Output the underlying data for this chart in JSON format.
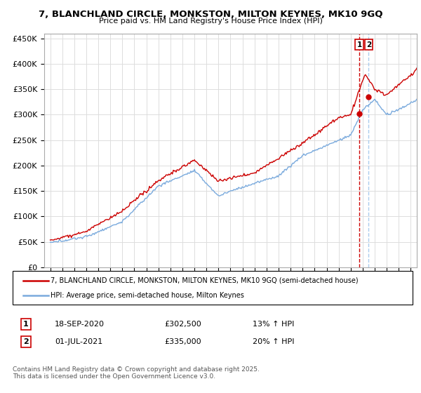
{
  "title": "7, BLANCHLAND CIRCLE, MONKSTON, MILTON KEYNES, MK10 9GQ",
  "subtitle": "Price paid vs. HM Land Registry's House Price Index (HPI)",
  "legend_line1": "7, BLANCHLAND CIRCLE, MONKSTON, MILTON KEYNES, MK10 9GQ (semi-detached house)",
  "legend_line2": "HPI: Average price, semi-detached house, Milton Keynes",
  "annotation1_date": "18-SEP-2020",
  "annotation1_price": "£302,500",
  "annotation1_hpi": "13% ↑ HPI",
  "annotation2_date": "01-JUL-2021",
  "annotation2_price": "£335,000",
  "annotation2_hpi": "20% ↑ HPI",
  "footer": "Contains HM Land Registry data © Crown copyright and database right 2025.\nThis data is licensed under the Open Government Licence v3.0.",
  "sale1_x": 2020.72,
  "sale1_y": 302500,
  "sale2_x": 2021.5,
  "sale2_y": 335000,
  "vline1_x": 2020.72,
  "vline2_x": 2021.5,
  "red_color": "#cc0000",
  "blue_color": "#7aaadd",
  "vline_color": "#cc0000",
  "vline2_color": "#aaccee",
  "ylim": [
    0,
    460000
  ],
  "xlim": [
    1994.5,
    2025.5
  ],
  "background_color": "#ffffff",
  "grid_color": "#dddddd"
}
